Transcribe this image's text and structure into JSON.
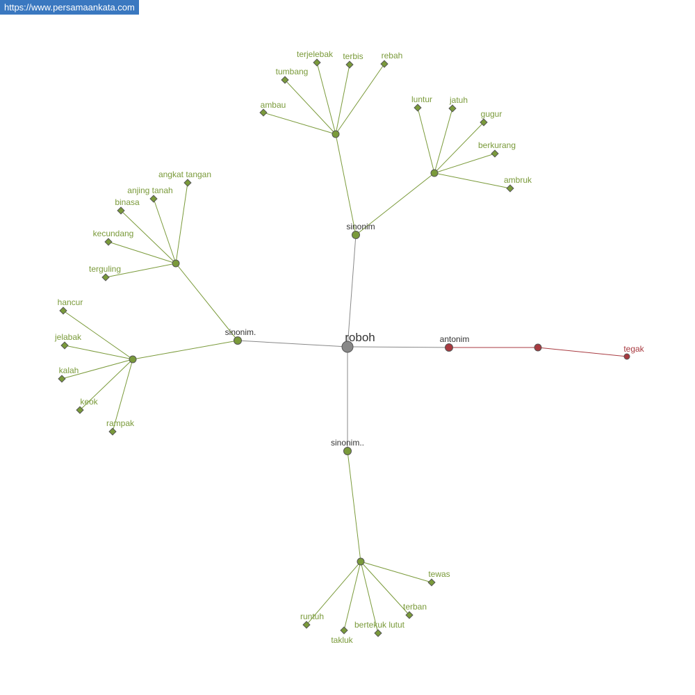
{
  "banner": "https://www.persamaankata.com",
  "colors": {
    "synonym": "#7a9a3a",
    "antonym": "#a83a40",
    "root": "#888888",
    "label_gray": "#333333"
  },
  "root": "roboh",
  "antonym": {
    "label": "antonim",
    "words": [
      "tegak"
    ]
  },
  "synonym_groups": [
    {
      "label": "sinonim",
      "clusters": [
        [
          "ambau",
          "tumbang",
          "terjelebak",
          "terbis",
          "rebah"
        ],
        [
          "luntur",
          "jatuh",
          "gugur",
          "berkurang",
          "ambruk"
        ]
      ]
    },
    {
      "label": "sinonim.",
      "clusters": [
        [
          "angkat tangan",
          "anjing tanah",
          "binasa",
          "kecundang",
          "terguling"
        ],
        [
          "hancur",
          "jelabak",
          "kalah",
          "keok",
          "rampak"
        ]
      ]
    },
    {
      "label": "sinonim..",
      "clusters": [
        [
          "tewas",
          "terban",
          "bertekuk lutut",
          "takluk",
          "runtuh"
        ]
      ]
    }
  ]
}
